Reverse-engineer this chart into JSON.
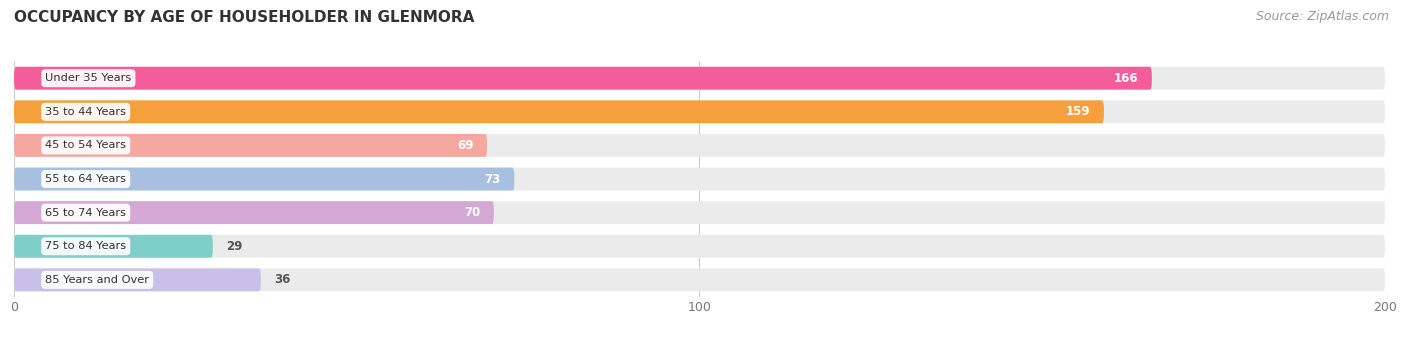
{
  "title": "OCCUPANCY BY AGE OF HOUSEHOLDER IN GLENMORA",
  "source": "Source: ZipAtlas.com",
  "categories": [
    "Under 35 Years",
    "35 to 44 Years",
    "45 to 54 Years",
    "55 to 64 Years",
    "65 to 74 Years",
    "75 to 84 Years",
    "85 Years and Over"
  ],
  "values": [
    166,
    159,
    69,
    73,
    70,
    29,
    36
  ],
  "bar_colors": [
    "#F45C9A",
    "#F5A03C",
    "#F4A8A0",
    "#A8C0E0",
    "#D4A8D4",
    "#7ECECA",
    "#C8C0E8"
  ],
  "track_color": "#EBEBEB",
  "xlim": [
    0,
    200
  ],
  "xticks": [
    0,
    100,
    200
  ],
  "background_color": "#FFFFFF",
  "title_fontsize": 11,
  "bar_height": 0.68,
  "label_color_inside": "#FFFFFF",
  "label_color_outside": "#555555",
  "source_color": "#999999",
  "source_fontsize": 9,
  "title_color": "#333333",
  "grid_color": "#CCCCCC"
}
